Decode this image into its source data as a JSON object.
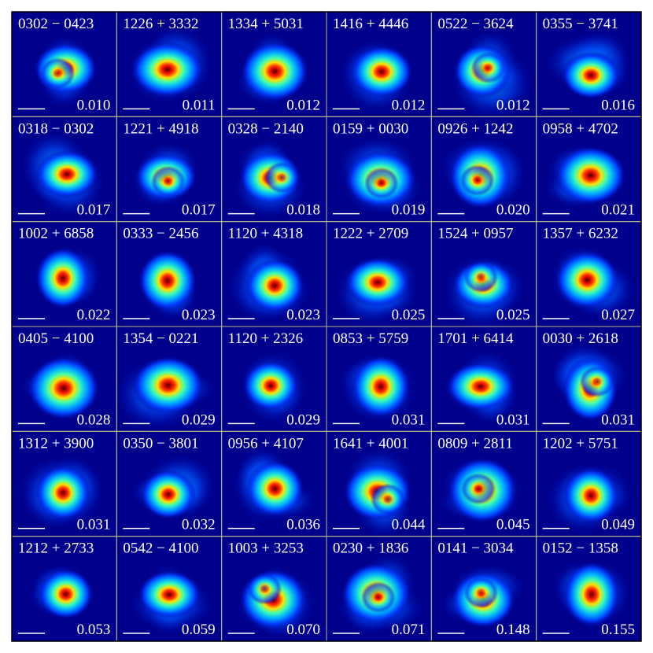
{
  "panels": [
    {
      "name": "0302 − 0423",
      "value": "0.010"
    },
    {
      "name": "1226 + 3332",
      "value": "0.011"
    },
    {
      "name": "1334 + 5031",
      "value": "0.012"
    },
    {
      "name": "1416 + 4446",
      "value": "0.012"
    },
    {
      "name": "0522 − 3624",
      "value": "0.012"
    },
    {
      "name": "0355 − 3741",
      "value": "0.016"
    },
    {
      "name": "0318 − 0302",
      "value": "0.017"
    },
    {
      "name": "1221 + 4918",
      "value": "0.017"
    },
    {
      "name": "0328 − 2140",
      "value": "0.018"
    },
    {
      "name": "0159 + 0030",
      "value": "0.019"
    },
    {
      "name": "0926 + 1242",
      "value": "0.020"
    },
    {
      "name": "0958 + 4702",
      "value": "0.021"
    },
    {
      "name": "1002 + 6858",
      "value": "0.022"
    },
    {
      "name": "0333 − 2456",
      "value": "0.023"
    },
    {
      "name": "1120 + 4318",
      "value": "0.023"
    },
    {
      "name": "1222 + 2709",
      "value": "0.025"
    },
    {
      "name": "1524 + 0957",
      "value": "0.025"
    },
    {
      "name": "1357 + 6232",
      "value": "0.027"
    },
    {
      "name": "0405 − 4100",
      "value": "0.028"
    },
    {
      "name": "1354 − 0221",
      "value": "0.029"
    },
    {
      "name": "1120 + 2326",
      "value": "0.029"
    },
    {
      "name": "0853 + 5759",
      "value": "0.031"
    },
    {
      "name": "1701 + 6414",
      "value": "0.031"
    },
    {
      "name": "0030 + 2618",
      "value": "0.031"
    },
    {
      "name": "1312 + 3900",
      "value": "0.031"
    },
    {
      "name": "0350 − 3801",
      "value": "0.032"
    },
    {
      "name": "0956 + 4107",
      "value": "0.036"
    },
    {
      "name": "1641 + 4001",
      "value": "0.044"
    },
    {
      "name": "0809 + 2811",
      "value": "0.045"
    },
    {
      "name": "1202 + 5751",
      "value": "0.049"
    },
    {
      "name": "1212 + 2733",
      "value": "0.053"
    },
    {
      "name": "0542 − 4100",
      "value": "0.059"
    },
    {
      "name": "1003 + 3253",
      "value": "0.070"
    },
    {
      "name": "0230 + 1836",
      "value": "0.071"
    },
    {
      "name": "0141 − 3034",
      "value": "0.148"
    },
    {
      "name": "0152 − 1358",
      "value": "0.155"
    }
  ]
}
